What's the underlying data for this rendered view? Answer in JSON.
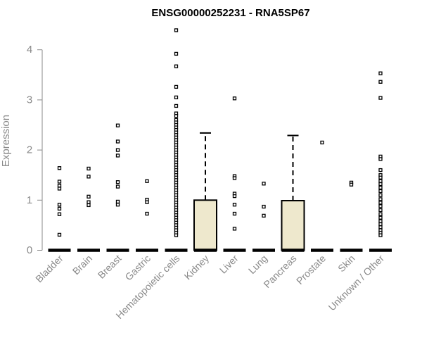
{
  "chart_data": {
    "type": "boxplot",
    "title": "ENSG00000252231 - RNA5SP67",
    "ylabel": "Expression",
    "xlabel": "",
    "ylim": [
      0,
      4.4
    ],
    "yticks": [
      0,
      1,
      2,
      3,
      4
    ],
    "grid": false,
    "legend": "none",
    "colors": {
      "box_fill": "#eee8cd",
      "outline": "#000000",
      "axis": "#8a8a8a"
    },
    "series": [
      {
        "category": "Bladder",
        "median": 0,
        "q1": 0,
        "q3": 0,
        "whisker_low": 0,
        "whisker_high": 0,
        "outliers": [
          1.64,
          1.37,
          1.29,
          1.23,
          0.91,
          0.83,
          0.72,
          0.31
        ]
      },
      {
        "category": "Brain",
        "median": 0,
        "q1": 0,
        "q3": 0,
        "whisker_low": 0,
        "whisker_high": 0,
        "outliers": [
          1.63,
          1.47,
          1.07,
          0.96,
          0.9
        ]
      },
      {
        "category": "Breast",
        "median": 0,
        "q1": 0,
        "q3": 0,
        "whisker_low": 0,
        "whisker_high": 0,
        "outliers": [
          2.49,
          2.17,
          2.0,
          1.89,
          1.36,
          1.27,
          0.97,
          0.91
        ]
      },
      {
        "category": "Gastric",
        "median": 0,
        "q1": 0,
        "q3": 0,
        "whisker_low": 0,
        "whisker_high": 0,
        "outliers": [
          1.38,
          1.01,
          0.96,
          0.73
        ]
      },
      {
        "category": "Hematopoietic cells",
        "median": 0,
        "q1": 0,
        "q3": 0,
        "whisker_low": 0,
        "whisker_high": 0,
        "outliers": [
          4.39,
          3.92,
          3.67,
          3.26,
          3.05,
          2.88,
          2.73,
          2.68,
          2.6,
          2.55,
          2.5,
          2.45,
          2.4,
          2.35,
          2.3,
          2.25,
          2.2,
          2.15,
          2.1,
          2.05,
          2.0,
          1.95,
          1.9,
          1.85,
          1.8,
          1.75,
          1.7,
          1.65,
          1.6,
          1.55,
          1.5,
          1.45,
          1.4,
          1.35,
          1.3,
          1.25,
          1.2,
          1.15,
          1.1,
          1.05,
          1.0,
          0.95,
          0.9,
          0.85,
          0.8,
          0.75,
          0.7,
          0.65,
          0.6,
          0.55,
          0.5,
          0.45,
          0.4,
          0.35,
          0.3
        ]
      },
      {
        "category": "Kidney",
        "median": 0,
        "q1": 0,
        "q3": 1.0,
        "whisker_low": 0,
        "whisker_high": 2.34,
        "outliers": []
      },
      {
        "category": "Liver",
        "median": 0,
        "q1": 0,
        "q3": 0,
        "whisker_low": 0,
        "whisker_high": 0,
        "outliers": [
          3.03,
          1.48,
          1.44,
          1.13,
          1.08,
          0.91,
          0.73,
          0.43
        ]
      },
      {
        "category": "Lung",
        "median": 0,
        "q1": 0,
        "q3": 0,
        "whisker_low": 0,
        "whisker_high": 0,
        "outliers": [
          1.33,
          0.87,
          0.69
        ]
      },
      {
        "category": "Pancreas",
        "median": 0,
        "q1": 0,
        "q3": 0.99,
        "whisker_low": 0,
        "whisker_high": 2.29,
        "outliers": []
      },
      {
        "category": "Prostate",
        "median": 0,
        "q1": 0,
        "q3": 0,
        "whisker_low": 0,
        "whisker_high": 0,
        "outliers": [
          2.15
        ]
      },
      {
        "category": "Skin",
        "median": 0,
        "q1": 0,
        "q3": 0,
        "whisker_low": 0,
        "whisker_high": 0,
        "outliers": [
          1.35,
          1.31
        ]
      },
      {
        "category": "Unknown / Other",
        "median": 0,
        "q1": 0,
        "q3": 0,
        "whisker_low": 0,
        "whisker_high": 0,
        "outliers": [
          3.53,
          3.36,
          3.04,
          1.87,
          1.82,
          1.6,
          1.5,
          1.45,
          1.38,
          1.32,
          1.25,
          1.18,
          1.1,
          1.02,
          0.95,
          0.88,
          0.8,
          0.72,
          0.65,
          0.58,
          0.52,
          0.46,
          0.4,
          0.35,
          0.3
        ]
      }
    ]
  }
}
